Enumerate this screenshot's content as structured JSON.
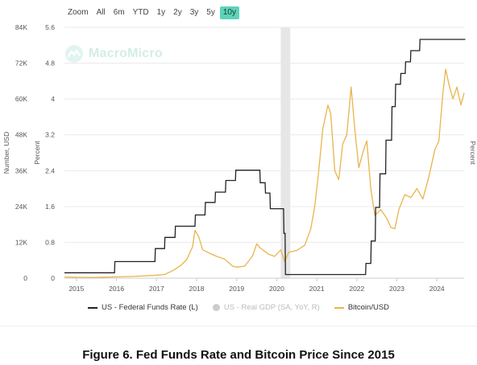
{
  "zoom": {
    "options": [
      "Zoom",
      "All",
      "6m",
      "YTD",
      "1y",
      "2y",
      "3y",
      "5y",
      "10y"
    ],
    "active": "10y"
  },
  "watermark": {
    "text": "MacroMicro",
    "icon": "macromicro-logo-icon"
  },
  "caption": "Figure 6. Fed Funds Rate and Bitcoin Price Since 2015",
  "colors": {
    "fed": "#222222",
    "btc": "#e8b54c",
    "gdp": "#cccccc",
    "recession": "#e6e6e6",
    "active_zoom": "#5dd3b9"
  },
  "chart_data": {
    "type": "line",
    "x_range": [
      2014.7,
      2024.68
    ],
    "x_ticks": [
      "2015",
      "2016",
      "2017",
      "2018",
      "2019",
      "2020",
      "2021",
      "2022",
      "2023",
      "2024"
    ],
    "left_axis": {
      "label": "Number, USD",
      "range": [
        0,
        84000
      ],
      "ticks": [
        "0",
        "12K",
        "24K",
        "36K",
        "48K",
        "60K",
        "72K",
        "84K"
      ]
    },
    "mid_axis": {
      "label": "Percent",
      "range": [
        0,
        5.6
      ],
      "ticks": [
        "0",
        "0.8",
        "1.6",
        "2.4",
        "3.2",
        "4",
        "4.8",
        "5.6"
      ]
    },
    "right_axis": {
      "label": "Percent"
    },
    "recession_band": [
      2020.1,
      2020.34
    ],
    "series": [
      {
        "name": "US - Federal Funds Rate (L)",
        "axis": "percent",
        "x": [
          2014.7,
          2015.95,
          2015.96,
          2016.96,
          2016.97,
          2017.2,
          2017.21,
          2017.46,
          2017.47,
          2017.96,
          2017.97,
          2018.21,
          2018.22,
          2018.46,
          2018.47,
          2018.72,
          2018.73,
          2018.97,
          2018.98,
          2019.58,
          2019.59,
          2019.71,
          2019.72,
          2019.83,
          2019.84,
          2020.17,
          2020.18,
          2020.21,
          2020.22,
          2022.22,
          2022.23,
          2022.35,
          2022.36,
          2022.46,
          2022.47,
          2022.57,
          2022.58,
          2022.72,
          2022.73,
          2022.87,
          2022.88,
          2022.96,
          2022.97,
          2023.09,
          2023.1,
          2023.21,
          2023.22,
          2023.34,
          2023.35,
          2023.57,
          2023.58,
          2024.71
        ],
        "y": [
          0.12,
          0.12,
          0.37,
          0.37,
          0.66,
          0.66,
          0.91,
          0.91,
          1.16,
          1.16,
          1.41,
          1.41,
          1.69,
          1.69,
          1.92,
          1.92,
          2.18,
          2.18,
          2.41,
          2.41,
          2.13,
          2.13,
          1.9,
          1.9,
          1.55,
          1.55,
          1.0,
          1.0,
          0.08,
          0.08,
          0.33,
          0.33,
          0.83,
          0.83,
          1.58,
          1.58,
          2.33,
          2.33,
          3.08,
          3.08,
          3.83,
          3.83,
          4.33,
          4.33,
          4.57,
          4.57,
          4.83,
          4.83,
          5.08,
          5.08,
          5.33,
          5.33
        ]
      },
      {
        "name": "US - Real GDP (SA, YoY, R)",
        "axis": "percent",
        "muted": true
      },
      {
        "name": "Bitcoin/USD",
        "axis": "usd",
        "x": [
          2014.7,
          2015.0,
          2015.5,
          2016.0,
          2016.5,
          2017.0,
          2017.2,
          2017.4,
          2017.6,
          2017.75,
          2017.9,
          2017.96,
          2018.05,
          2018.15,
          2018.3,
          2018.5,
          2018.7,
          2018.9,
          2019.0,
          2019.2,
          2019.4,
          2019.5,
          2019.6,
          2019.8,
          2019.95,
          2020.1,
          2020.2,
          2020.3,
          2020.5,
          2020.7,
          2020.85,
          2020.95,
          2021.05,
          2021.15,
          2021.28,
          2021.35,
          2021.45,
          2021.55,
          2021.65,
          2021.75,
          2021.86,
          2021.95,
          2022.05,
          2022.15,
          2022.25,
          2022.35,
          2022.45,
          2022.6,
          2022.75,
          2022.85,
          2022.95,
          2023.05,
          2023.2,
          2023.35,
          2023.5,
          2023.65,
          2023.8,
          2023.95,
          2024.05,
          2024.15,
          2024.22,
          2024.3,
          2024.4,
          2024.5,
          2024.6,
          2024.68
        ],
        "y": [
          400,
          300,
          260,
          430,
          650,
          1000,
          1200,
          2500,
          4200,
          6200,
          10500,
          16000,
          14000,
          9500,
          8500,
          7300,
          6400,
          4000,
          3700,
          4000,
          7500,
          11500,
          10000,
          8000,
          7300,
          9500,
          5500,
          8700,
          9300,
          11000,
          16500,
          24000,
          36000,
          50000,
          58000,
          55000,
          36000,
          33000,
          45000,
          48000,
          64000,
          50000,
          37000,
          42000,
          46000,
          30000,
          21000,
          23000,
          20000,
          17000,
          16500,
          23000,
          28000,
          27000,
          30000,
          26500,
          34000,
          43000,
          46000,
          62000,
          70000,
          65000,
          60000,
          64000,
          58000,
          62000
        ]
      }
    ]
  }
}
